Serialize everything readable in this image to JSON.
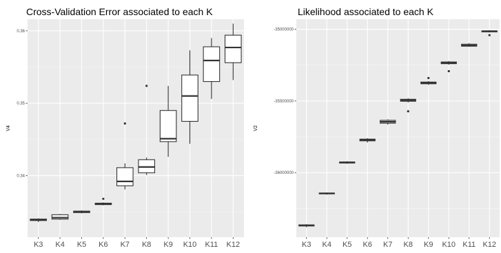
{
  "chart_data": [
    {
      "type": "boxplot",
      "title": "Cross-Validation Error associated to each K",
      "xlabel": "",
      "ylabel": "V4",
      "categories": [
        "K3",
        "K4",
        "K5",
        "K6",
        "K7",
        "K8",
        "K9",
        "K10",
        "K11",
        "K12"
      ],
      "y_ticks": [
        0.34,
        0.35,
        0.36
      ],
      "ylim": [
        0.3315,
        0.3616
      ],
      "grid": true,
      "boxes": [
        {
          "whisker_low": 0.3336,
          "q1": 0.3338,
          "median": 0.3339,
          "q3": 0.334,
          "whisker_high": 0.3341,
          "outliers": []
        },
        {
          "whisker_low": 0.3339,
          "q1": 0.334,
          "median": 0.3342,
          "q3": 0.3346,
          "whisker_high": 0.3347,
          "outliers": []
        },
        {
          "whisker_low": 0.3348,
          "q1": 0.3349,
          "median": 0.335,
          "q3": 0.3351,
          "whisker_high": 0.3352,
          "outliers": []
        },
        {
          "whisker_low": 0.3359,
          "q1": 0.336,
          "median": 0.3361,
          "q3": 0.3362,
          "whisker_high": 0.3363,
          "outliers": [
            0.3368
          ]
        },
        {
          "whisker_low": 0.3381,
          "q1": 0.3386,
          "median": 0.3392,
          "q3": 0.3411,
          "whisker_high": 0.3417,
          "outliers": [
            0.3472
          ]
        },
        {
          "whisker_low": 0.3401,
          "q1": 0.3404,
          "median": 0.3412,
          "q3": 0.3422,
          "whisker_high": 0.3425,
          "outliers": [
            0.3524
          ]
        },
        {
          "whisker_low": 0.3426,
          "q1": 0.3447,
          "median": 0.3451,
          "q3": 0.349,
          "whisker_high": 0.3524,
          "outliers": []
        },
        {
          "whisker_low": 0.3444,
          "q1": 0.3475,
          "median": 0.351,
          "q3": 0.3539,
          "whisker_high": 0.3573,
          "outliers": []
        },
        {
          "whisker_low": 0.3506,
          "q1": 0.353,
          "median": 0.3559,
          "q3": 0.3578,
          "whisker_high": 0.359,
          "outliers": []
        },
        {
          "whisker_low": 0.3532,
          "q1": 0.3556,
          "median": 0.3577,
          "q3": 0.3594,
          "whisker_high": 0.361,
          "outliers": []
        }
      ]
    },
    {
      "type": "boxplot",
      "title": "Likelihood associated to each K",
      "xlabel": "",
      "ylabel": "V2",
      "categories": [
        "K3",
        "K4",
        "K5",
        "K6",
        "K7",
        "K8",
        "K9",
        "K10",
        "K11",
        "K12"
      ],
      "y_ticks": [
        -36000000,
        -35500000,
        -35000000
      ],
      "y_tick_labels": [
        "-36000000",
        "-35500000",
        "-35000000"
      ],
      "ylim": [
        -36450000,
        -34930000
      ],
      "grid": true,
      "boxes": [
        {
          "whisker_low": -36380000,
          "q1": -36372000,
          "median": -36368000,
          "q3": -36364000,
          "whisker_high": -36360000,
          "outliers": []
        },
        {
          "whisker_low": -36153000,
          "q1": -36148000,
          "median": -36145000,
          "q3": -36142000,
          "whisker_high": -36138000,
          "outliers": []
        },
        {
          "whisker_low": -35938000,
          "q1": -35933000,
          "median": -35929000,
          "q3": -35925000,
          "whisker_high": -35920000,
          "outliers": []
        },
        {
          "whisker_low": -35790000,
          "q1": -35778000,
          "median": -35772000,
          "q3": -35766000,
          "whisker_high": -35760000,
          "outliers": []
        },
        {
          "whisker_low": -35665000,
          "q1": -35655000,
          "median": -35645000,
          "q3": -35635000,
          "whisker_high": -35628000,
          "outliers": []
        },
        {
          "whisker_low": -35510000,
          "q1": -35502000,
          "median": -35495000,
          "q3": -35488000,
          "whisker_high": -35482000,
          "outliers": [
            -35572000
          ]
        },
        {
          "whisker_low": -35387000,
          "q1": -35380000,
          "median": -35374000,
          "q3": -35368000,
          "whisker_high": -35362000,
          "outliers": [
            -35340000
          ]
        },
        {
          "whisker_low": -35247000,
          "q1": -35240000,
          "median": -35234000,
          "q3": -35228000,
          "whisker_high": -35222000,
          "outliers": [
            -35292000
          ]
        },
        {
          "whisker_low": -35122000,
          "q1": -35118000,
          "median": -35112000,
          "q3": -35104000,
          "whisker_high": -35097000,
          "outliers": []
        },
        {
          "whisker_low": -35022000,
          "q1": -35018000,
          "median": -35014000,
          "q3": -35011000,
          "whisker_high": -35007000,
          "outliers": [
            -35041000
          ]
        }
      ]
    }
  ]
}
